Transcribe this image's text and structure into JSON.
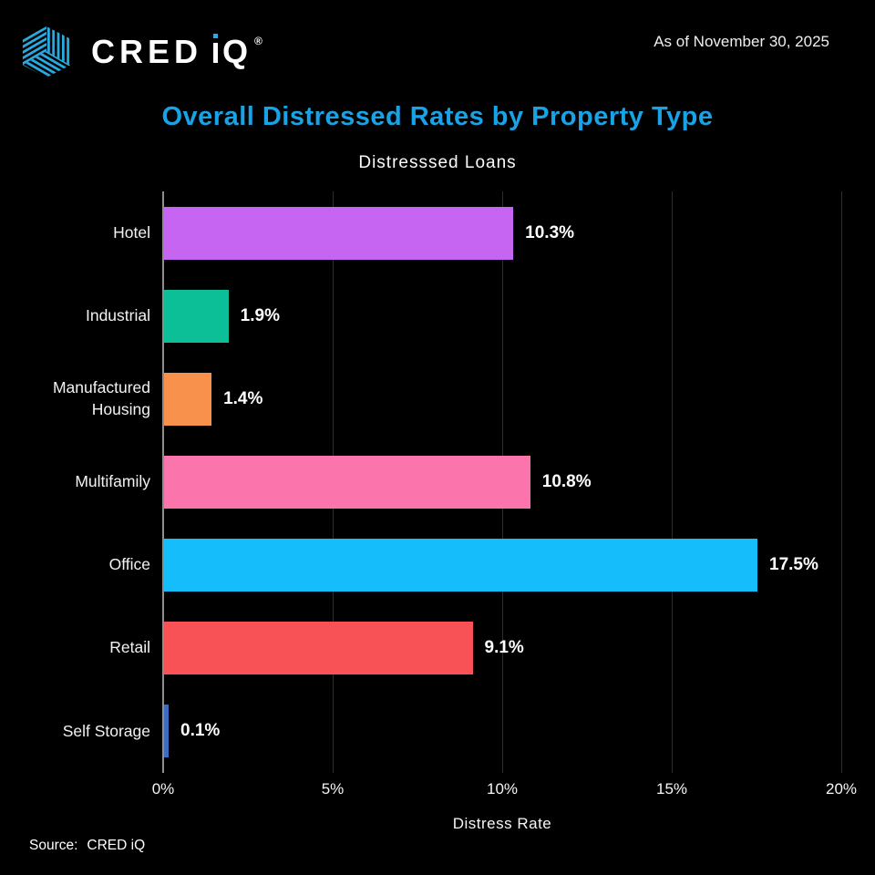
{
  "header": {
    "logo": {
      "icon": "crediq-cube-icon",
      "brand_cred": "CRED",
      "brand_q": "Q",
      "registered": "®",
      "logo_blue": "#29abe2"
    },
    "as_of": "As of November 30, 2025"
  },
  "title": "Overall Distressed Rates by Property Type",
  "subtitle": "Distresssed Loans",
  "source": {
    "label": "Source:",
    "value": "CRED iQ"
  },
  "colors": {
    "background": "#000000",
    "title_accent": "#17a3e6",
    "gridline": "#2d2d2d",
    "axis_line": "#8e8e8e",
    "text": "#ffffff"
  },
  "chart_data": {
    "type": "bar",
    "orientation": "horizontal",
    "title": "Distresssed Loans",
    "categories": [
      "Hotel",
      "Industrial",
      "Manufactured Housing",
      "Multifamily",
      "Office",
      "Retail",
      "Self Storage"
    ],
    "values": [
      10.3,
      1.9,
      1.4,
      10.8,
      17.5,
      9.1,
      0.1
    ],
    "value_labels": [
      "10.3%",
      "1.9%",
      "1.4%",
      "10.8%",
      "17.5%",
      "9.1%",
      "0.1%"
    ],
    "bar_colors": [
      "#c765f3",
      "#0dbf97",
      "#f7914c",
      "#fb74ab",
      "#16bdfb",
      "#f85257",
      "#3c6bbf"
    ],
    "xlabel": "Distress Rate",
    "ylabel": "",
    "x_ticks": [
      "0%",
      "5%",
      "10%",
      "15%",
      "20%"
    ],
    "x_tick_values": [
      0,
      5,
      10,
      15,
      20
    ],
    "xlim": [
      0,
      20
    ],
    "grid": true,
    "legend": "none"
  }
}
